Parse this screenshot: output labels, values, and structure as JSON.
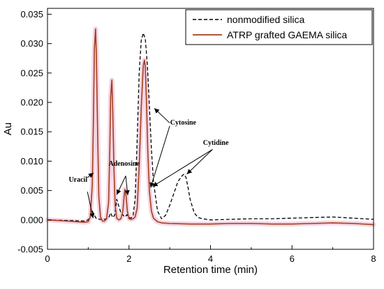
{
  "chart_data": {
    "type": "line",
    "xlabel": "Retention time (min)",
    "ylabel": "Au",
    "xlim": [
      0,
      8
    ],
    "ylim": [
      -0.005,
      0.036
    ],
    "x_ticks": [
      0,
      2,
      4,
      6,
      8
    ],
    "x_tick_labels": [
      "0",
      "2",
      "4",
      "6",
      "8"
    ],
    "y_ticks": [
      -0.005,
      0.0,
      0.005,
      0.01,
      0.015,
      0.02,
      0.025,
      0.03,
      0.035
    ],
    "y_tick_labels": [
      "-0.005",
      "0.000",
      "0.005",
      "0.010",
      "0.015",
      "0.020",
      "0.025",
      "0.030",
      "0.035"
    ],
    "grid": false,
    "legend_position": "top-right",
    "series": [
      {
        "name": "nonmodified silica",
        "style": "dashed",
        "color": "#000000",
        "x": [
          0,
          0.5,
          0.9,
          1.0,
          1.05,
          1.1,
          1.15,
          1.2,
          1.3,
          1.4,
          1.5,
          1.55,
          1.6,
          1.65,
          1.7,
          1.8,
          1.9,
          1.95,
          2.0,
          2.05,
          2.1,
          2.15,
          2.2,
          2.25,
          2.3,
          2.35,
          2.4,
          2.45,
          2.5,
          2.55,
          2.6,
          2.7,
          2.8,
          2.9,
          3.0,
          3.1,
          3.2,
          3.3,
          3.35,
          3.4,
          3.45,
          3.5,
          3.6,
          3.7,
          3.8,
          4.0,
          4.5,
          5.0,
          5.5,
          6.0,
          6.5,
          7.0,
          7.5,
          8.0
        ],
        "y": [
          0.0,
          -0.0001,
          -0.0002,
          0.0,
          0.0005,
          0.0015,
          0.0008,
          0.0002,
          0.0001,
          0.0001,
          0.0003,
          0.0012,
          0.0004,
          0.0008,
          0.0035,
          0.0012,
          0.0005,
          0.0009,
          0.0004,
          0.0003,
          0.0008,
          0.0035,
          0.0135,
          0.025,
          0.0305,
          0.0318,
          0.0308,
          0.0265,
          0.0195,
          0.012,
          0.0065,
          0.0015,
          0.0002,
          0.0008,
          0.0025,
          0.0045,
          0.0065,
          0.0075,
          0.0078,
          0.0072,
          0.0055,
          0.0035,
          0.0012,
          0.0004,
          0.0002,
          0.0,
          0.0001,
          0.0002,
          0.0002,
          0.0003,
          0.0004,
          0.0005,
          0.0003,
          0.0001
        ]
      },
      {
        "name": "ATRP grafted GAEMA silica",
        "style": "solid",
        "color": "#a0401e",
        "x": [
          0,
          0.5,
          0.9,
          1.0,
          1.05,
          1.1,
          1.13,
          1.15,
          1.18,
          1.2,
          1.23,
          1.26,
          1.3,
          1.35,
          1.4,
          1.45,
          1.5,
          1.53,
          1.55,
          1.58,
          1.6,
          1.63,
          1.66,
          1.7,
          1.75,
          1.8,
          1.85,
          1.88,
          1.9,
          1.93,
          1.96,
          2.0,
          2.05,
          2.1,
          2.15,
          2.2,
          2.25,
          2.3,
          2.35,
          2.38,
          2.4,
          2.43,
          2.46,
          2.5,
          2.55,
          2.6,
          2.7,
          2.8,
          3.0,
          3.5,
          4.0,
          4.5,
          5.0,
          5.5,
          6.0,
          6.5,
          7.0,
          7.5,
          8.0
        ],
        "y": [
          0.0,
          -0.0002,
          -0.0004,
          -0.0003,
          0.0005,
          0.006,
          0.018,
          0.029,
          0.0325,
          0.028,
          0.015,
          0.004,
          0.0005,
          -0.0002,
          -0.0002,
          0.0002,
          0.003,
          0.012,
          0.021,
          0.0238,
          0.019,
          0.009,
          0.0025,
          0.0003,
          0.0,
          0.0002,
          0.0015,
          0.004,
          0.0052,
          0.004,
          0.0015,
          0.0002,
          0.0001,
          0.0002,
          0.0005,
          0.002,
          0.009,
          0.019,
          0.0262,
          0.0272,
          0.026,
          0.02,
          0.012,
          0.005,
          0.0015,
          0.0003,
          -0.0003,
          -0.0005,
          -0.0006,
          -0.0007,
          -0.0007,
          -0.0006,
          -0.0006,
          -0.0007,
          -0.0007,
          -0.0006,
          -0.0005,
          -0.0006,
          -0.0008
        ]
      }
    ],
    "annotations": [
      {
        "text": "Uracil",
        "x": 0.75,
        "y": 0.0065
      },
      {
        "text": "Adenosine",
        "x": 1.88,
        "y": 0.0092
      },
      {
        "text": "Cytosine",
        "x": 3.33,
        "y": 0.0162
      },
      {
        "text": "Cytidine",
        "x": 4.13,
        "y": 0.0128
      }
    ]
  },
  "colors": {
    "highlight_glow": "#f4c9dc"
  }
}
